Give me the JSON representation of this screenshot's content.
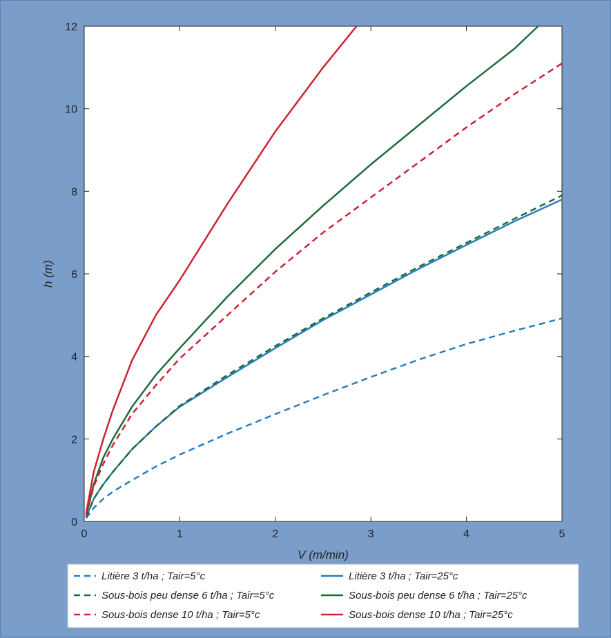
{
  "chart_data": {
    "type": "line",
    "xlabel": "V (m/min)",
    "ylabel": "h (m)",
    "xlim": [
      0,
      5
    ],
    "ylim": [
      0,
      12
    ],
    "xticks": [
      0,
      1,
      2,
      3,
      4,
      5
    ],
    "yticks": [
      0,
      2,
      4,
      6,
      8,
      10,
      12
    ],
    "grid": false,
    "legend_position": "bottom",
    "series": [
      {
        "name": "Litière 3 t/ha ; Tair=5°c",
        "color": "#2a7dbf",
        "dash": true,
        "x": [
          0.02,
          0.1,
          0.2,
          0.3,
          0.5,
          0.75,
          1,
          1.5,
          2,
          2.5,
          3,
          3.5,
          4,
          4.5,
          5
        ],
        "y": [
          0.08,
          0.33,
          0.55,
          0.72,
          1.0,
          1.33,
          1.62,
          2.13,
          2.6,
          3.06,
          3.5,
          3.92,
          4.3,
          4.62,
          4.92
        ]
      },
      {
        "name": "Litière 3 t/ha ; Tair=25°c",
        "color": "#2a7dbf",
        "dash": false,
        "x": [
          0.02,
          0.1,
          0.2,
          0.3,
          0.5,
          0.75,
          1,
          1.5,
          2,
          2.5,
          3,
          3.5,
          4,
          4.5,
          5
        ],
        "y": [
          0.1,
          0.55,
          0.9,
          1.2,
          1.75,
          2.3,
          2.78,
          3.5,
          4.2,
          4.88,
          5.5,
          6.12,
          6.7,
          7.27,
          7.8
        ]
      },
      {
        "name": "Sous-bois peu dense 6 t/ha ; Tair=5°c",
        "color": "#1e6b3a",
        "dash": true,
        "x": [
          0.02,
          0.1,
          0.2,
          0.3,
          0.5,
          0.75,
          1,
          1.5,
          2,
          2.5,
          3,
          3.5,
          4,
          4.5,
          5
        ],
        "y": [
          0.1,
          0.55,
          0.9,
          1.2,
          1.75,
          2.3,
          2.8,
          3.55,
          4.25,
          4.92,
          5.55,
          6.17,
          6.75,
          7.33,
          7.9
        ]
      },
      {
        "name": "Sous-bois peu dense 6 t/ha ; Tair=25°c",
        "color": "#1e6b3a",
        "dash": false,
        "x": [
          0.02,
          0.1,
          0.2,
          0.3,
          0.5,
          0.75,
          1,
          1.5,
          2,
          2.5,
          3,
          3.5,
          4,
          4.5,
          4.75
        ],
        "y": [
          0.15,
          0.9,
          1.55,
          2.0,
          2.78,
          3.55,
          4.2,
          5.45,
          6.6,
          7.65,
          8.65,
          9.6,
          10.55,
          11.45,
          12.0
        ]
      },
      {
        "name": "Sous-bois dense 10 t/ha ; Tair=5°c",
        "color": "#cc2233",
        "dash": true,
        "x": [
          0.02,
          0.1,
          0.2,
          0.3,
          0.5,
          0.75,
          1,
          1.5,
          2,
          2.5,
          3,
          3.5,
          4,
          4.5,
          5
        ],
        "y": [
          0.15,
          0.85,
          1.4,
          1.85,
          2.6,
          3.3,
          3.95,
          5.0,
          6.05,
          7.0,
          7.85,
          8.7,
          9.55,
          10.35,
          11.1
        ]
      },
      {
        "name": "Sous-bois dense 10 t/ha ; Tair=25°c",
        "color": "#cc2233",
        "dash": false,
        "x": [
          0.02,
          0.1,
          0.2,
          0.3,
          0.5,
          0.75,
          1,
          1.5,
          2,
          2.5,
          2.85
        ],
        "y": [
          0.2,
          1.2,
          2.0,
          2.7,
          3.9,
          5.0,
          5.85,
          7.7,
          9.45,
          11.0,
          12.0
        ]
      }
    ]
  }
}
